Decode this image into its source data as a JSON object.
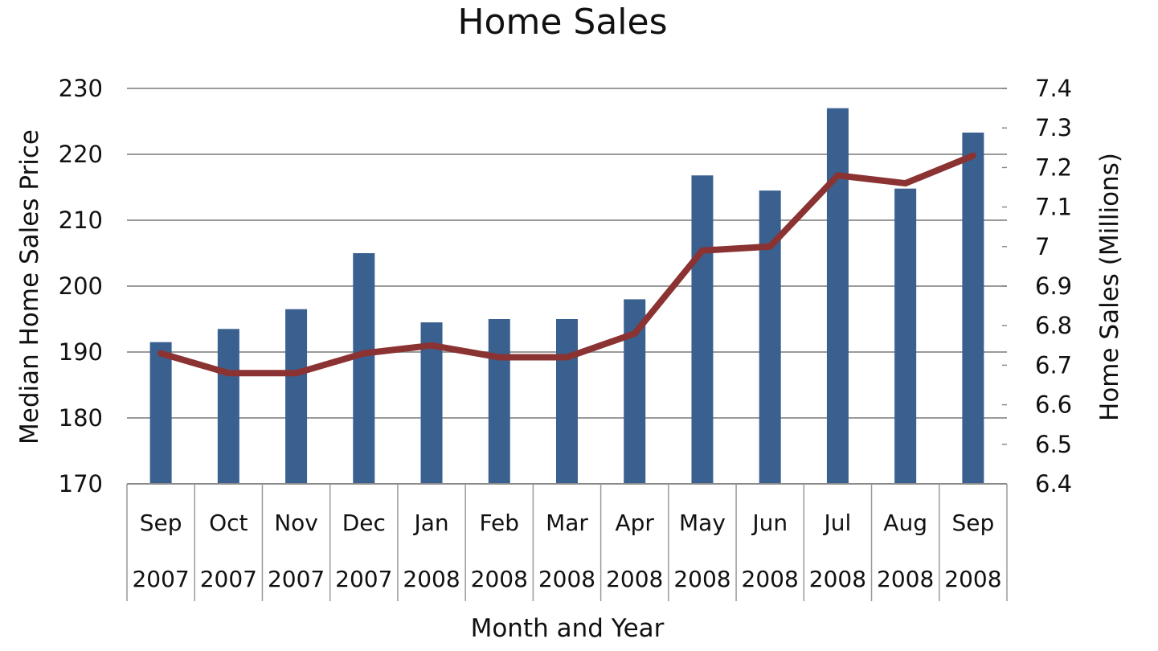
{
  "chart_data": {
    "type": "bar",
    "title": "Home Sales",
    "xlabel": "Month and Year",
    "ylabel": "Median Home Sales Price",
    "y2label": "Home Sales (Millions)",
    "categories": [
      {
        "month": "Sep",
        "year": "2007"
      },
      {
        "month": "Oct",
        "year": "2007"
      },
      {
        "month": "Nov",
        "year": "2007"
      },
      {
        "month": "Dec",
        "year": "2007"
      },
      {
        "month": "Jan",
        "year": "2008"
      },
      {
        "month": "Feb",
        "year": "2008"
      },
      {
        "month": "Mar",
        "year": "2008"
      },
      {
        "month": "Apr",
        "year": "2008"
      },
      {
        "month": "May",
        "year": "2008"
      },
      {
        "month": "Jun",
        "year": "2008"
      },
      {
        "month": "Jul",
        "year": "2008"
      },
      {
        "month": "Aug",
        "year": "2008"
      },
      {
        "month": "Sep",
        "year": "2008"
      }
    ],
    "series": [
      {
        "kind": "bar",
        "axis": "left",
        "color": "#3a6090",
        "values": [
          191.5,
          193.5,
          196.5,
          205,
          194.5,
          195,
          195,
          198,
          216.8,
          214.5,
          227,
          214.8,
          223.3
        ]
      },
      {
        "kind": "line",
        "axis": "right",
        "color": "#8b3333",
        "values": [
          6.73,
          6.68,
          6.68,
          6.73,
          6.75,
          6.72,
          6.72,
          6.78,
          6.99,
          7.0,
          7.18,
          7.16,
          7.23
        ]
      }
    ],
    "ylim": [
      170,
      230
    ],
    "yticks": [
      "170",
      "180",
      "190",
      "200",
      "210",
      "220",
      "230"
    ],
    "y2lim": [
      6.4,
      7.4
    ],
    "y2ticks": [
      "6.4",
      "6.5",
      "6.6",
      "6.7",
      "6.8",
      "6.9",
      "7",
      "7.1",
      "7.2",
      "7.3",
      "7.4"
    ],
    "grid": true,
    "gridColor": "#9a9a9a",
    "legend": "none"
  }
}
